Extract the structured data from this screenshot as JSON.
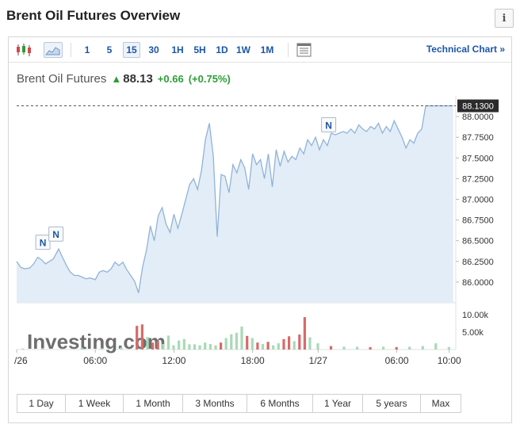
{
  "header": {
    "title": "Brent Oil Futures Overview",
    "info_label": "i"
  },
  "toolbar": {
    "icons": [
      "candlestick-chart-icon",
      "area-chart-icon",
      "settings-panel-icon"
    ],
    "timeframes": [
      "1",
      "5",
      "15",
      "30",
      "1H",
      "5H",
      "1D",
      "1W",
      "1M"
    ],
    "active_timeframe": "15",
    "technical_link": "Technical Chart »"
  },
  "quote": {
    "name": "Brent Oil Futures",
    "price": "88.13",
    "change": "+0.66",
    "change_pct": "(+0.75%)"
  },
  "colors": {
    "accent": "#1c56a6",
    "up": "#2d9d3a",
    "down": "#d04a4a",
    "area_fill": "#e3edf7",
    "line": "#8fb3d9",
    "vol_up": "#a9d9b6",
    "vol_down": "#d86a6a"
  },
  "watermark": "Investing.com",
  "range_buttons": [
    "1 Day",
    "1 Week",
    "1 Month",
    "3 Months",
    "6 Months",
    "1 Year",
    "5 years",
    "Max"
  ],
  "chart_data": {
    "type": "area",
    "ylim": [
      85.75,
      88.25
    ],
    "y_ticks": [
      "88.0000",
      "87.7500",
      "87.5000",
      "87.2500",
      "87.0000",
      "86.7500",
      "86.5000",
      "86.2500",
      "86.0000"
    ],
    "y_tick_values": [
      88.0,
      87.75,
      87.5,
      87.25,
      87.0,
      86.75,
      86.5,
      86.25,
      86.0
    ],
    "last_price_label": "88.1300",
    "last_price": 88.13,
    "x_ticks": [
      "/26",
      "06:00",
      "12:00",
      "18:00",
      "1/27",
      "06:00",
      "10:00"
    ],
    "x_tick_positions": [
      0,
      6,
      12,
      18,
      23,
      29,
      33
    ],
    "xlim": [
      0,
      33.5
    ],
    "volume_ticks": [
      "10.00k",
      "5.00k"
    ],
    "volume_tick_values": [
      10000,
      5000
    ],
    "volume_max": 12500,
    "news_markers": [
      {
        "label": "N",
        "x": 2.0,
        "y": 86.28
      },
      {
        "label": "N",
        "x": 3.0,
        "y": 86.38
      },
      {
        "label": "N",
        "x": 23.8,
        "y": 87.7
      }
    ],
    "series": [
      {
        "x": [
          0,
          0.3,
          0.6,
          1.0,
          1.3,
          1.6,
          1.9,
          2.2,
          2.5,
          2.8,
          3.0,
          3.2,
          3.5,
          3.8,
          4.1,
          4.4,
          4.7,
          5.0,
          5.3,
          5.6,
          6.0,
          6.3,
          6.6,
          6.9,
          7.2,
          7.5,
          7.8,
          8.1,
          8.4,
          8.7,
          9.0,
          9.3,
          9.6,
          9.9,
          10.2,
          10.5,
          10.8,
          11.1,
          11.4,
          11.7,
          12.0,
          12.3,
          12.6,
          12.9,
          13.2,
          13.5,
          13.8,
          14.1,
          14.4,
          14.7,
          15.0,
          15.3,
          15.6,
          15.9,
          16.2,
          16.5,
          16.8,
          17.1,
          17.4,
          17.7,
          18.0,
          18.3,
          18.6,
          18.9,
          19.2,
          19.5,
          19.8,
          20.1,
          20.4,
          20.7,
          21.0,
          21.3,
          21.6,
          21.9,
          22.2,
          22.5,
          22.8,
          23.1,
          23.4,
          23.7,
          24.0,
          24.3,
          24.6,
          24.9,
          25.2,
          25.5,
          25.8,
          26.1,
          26.4,
          26.7,
          27.0,
          27.3,
          27.6,
          27.9,
          28.2,
          28.5,
          28.8,
          29.1,
          29.4,
          29.7,
          30.0,
          30.3,
          30.6,
          30.9,
          31.2,
          31.5,
          31.8,
          32.1,
          32.4,
          32.7,
          33.0,
          33.3
        ],
        "values": [
          86.25,
          86.18,
          86.16,
          86.17,
          86.22,
          86.3,
          86.27,
          86.22,
          86.25,
          86.28,
          86.34,
          86.4,
          86.3,
          86.2,
          86.12,
          86.08,
          86.08,
          86.06,
          86.04,
          86.05,
          86.03,
          86.12,
          86.14,
          86.12,
          86.16,
          86.24,
          86.2,
          86.24,
          86.15,
          86.08,
          86.01,
          85.87,
          86.18,
          86.38,
          86.68,
          86.5,
          86.8,
          86.9,
          86.7,
          86.6,
          86.82,
          86.65,
          86.82,
          87.0,
          87.18,
          87.25,
          87.12,
          87.35,
          87.72,
          87.92,
          87.52,
          86.55,
          87.3,
          87.28,
          87.08,
          87.42,
          87.32,
          87.48,
          87.38,
          87.12,
          87.55,
          87.42,
          87.48,
          87.25,
          87.55,
          87.15,
          87.6,
          87.4,
          87.58,
          87.45,
          87.52,
          87.48,
          87.62,
          87.55,
          87.72,
          87.65,
          87.75,
          87.6,
          87.72,
          87.65,
          87.8,
          87.78,
          87.8,
          87.82,
          87.8,
          87.85,
          87.8,
          87.9,
          87.85,
          87.82,
          87.88,
          87.85,
          87.92,
          87.8,
          87.88,
          87.82,
          87.95,
          87.85,
          87.75,
          87.62,
          87.72,
          87.68,
          87.8,
          87.85,
          88.13,
          88.13,
          88.13,
          88.13,
          88.13,
          88.13,
          88.13,
          88.13
        ]
      }
    ],
    "volume": {
      "x": [
        0.5,
        2,
        3.5,
        5,
        6.5,
        8,
        9.2,
        9.6,
        10,
        10.4,
        10.8,
        11.2,
        11.6,
        12,
        12.4,
        12.8,
        13.2,
        13.6,
        14,
        14.4,
        14.8,
        15.2,
        15.6,
        16,
        16.4,
        16.8,
        17.2,
        17.6,
        18,
        18.4,
        18.8,
        19.2,
        19.6,
        20,
        20.4,
        20.8,
        21.2,
        21.6,
        22,
        22.4,
        23,
        24,
        25,
        26,
        27,
        28,
        29,
        30,
        31,
        32,
        33
      ],
      "values": [
        300,
        400,
        300,
        500,
        400,
        600,
        6800,
        7200,
        3600,
        2000,
        2400,
        1600,
        4000,
        1200,
        2600,
        3000,
        1500,
        1500,
        1200,
        2000,
        1600,
        1200,
        2000,
        3300,
        4400,
        4800,
        6600,
        3900,
        3300,
        2000,
        1600,
        2200,
        1200,
        1800,
        3000,
        3800,
        2400,
        4300,
        9300,
        3500,
        1800,
        1000,
        800,
        800,
        700,
        800,
        700,
        800,
        1000,
        1800,
        700
      ],
      "direction": [
        "up",
        "up",
        "up",
        "up",
        "up",
        "up",
        "down",
        "down",
        "up",
        "down",
        "down",
        "up",
        "up",
        "up",
        "up",
        "up",
        "up",
        "up",
        "up",
        "up",
        "up",
        "up",
        "down",
        "up",
        "up",
        "up",
        "up",
        "down",
        "up",
        "down",
        "up",
        "down",
        "up",
        "up",
        "down",
        "down",
        "up",
        "down",
        "down",
        "up",
        "up",
        "down",
        "up",
        "up",
        "down",
        "up",
        "down",
        "up",
        "up",
        "up",
        "up"
      ]
    }
  }
}
